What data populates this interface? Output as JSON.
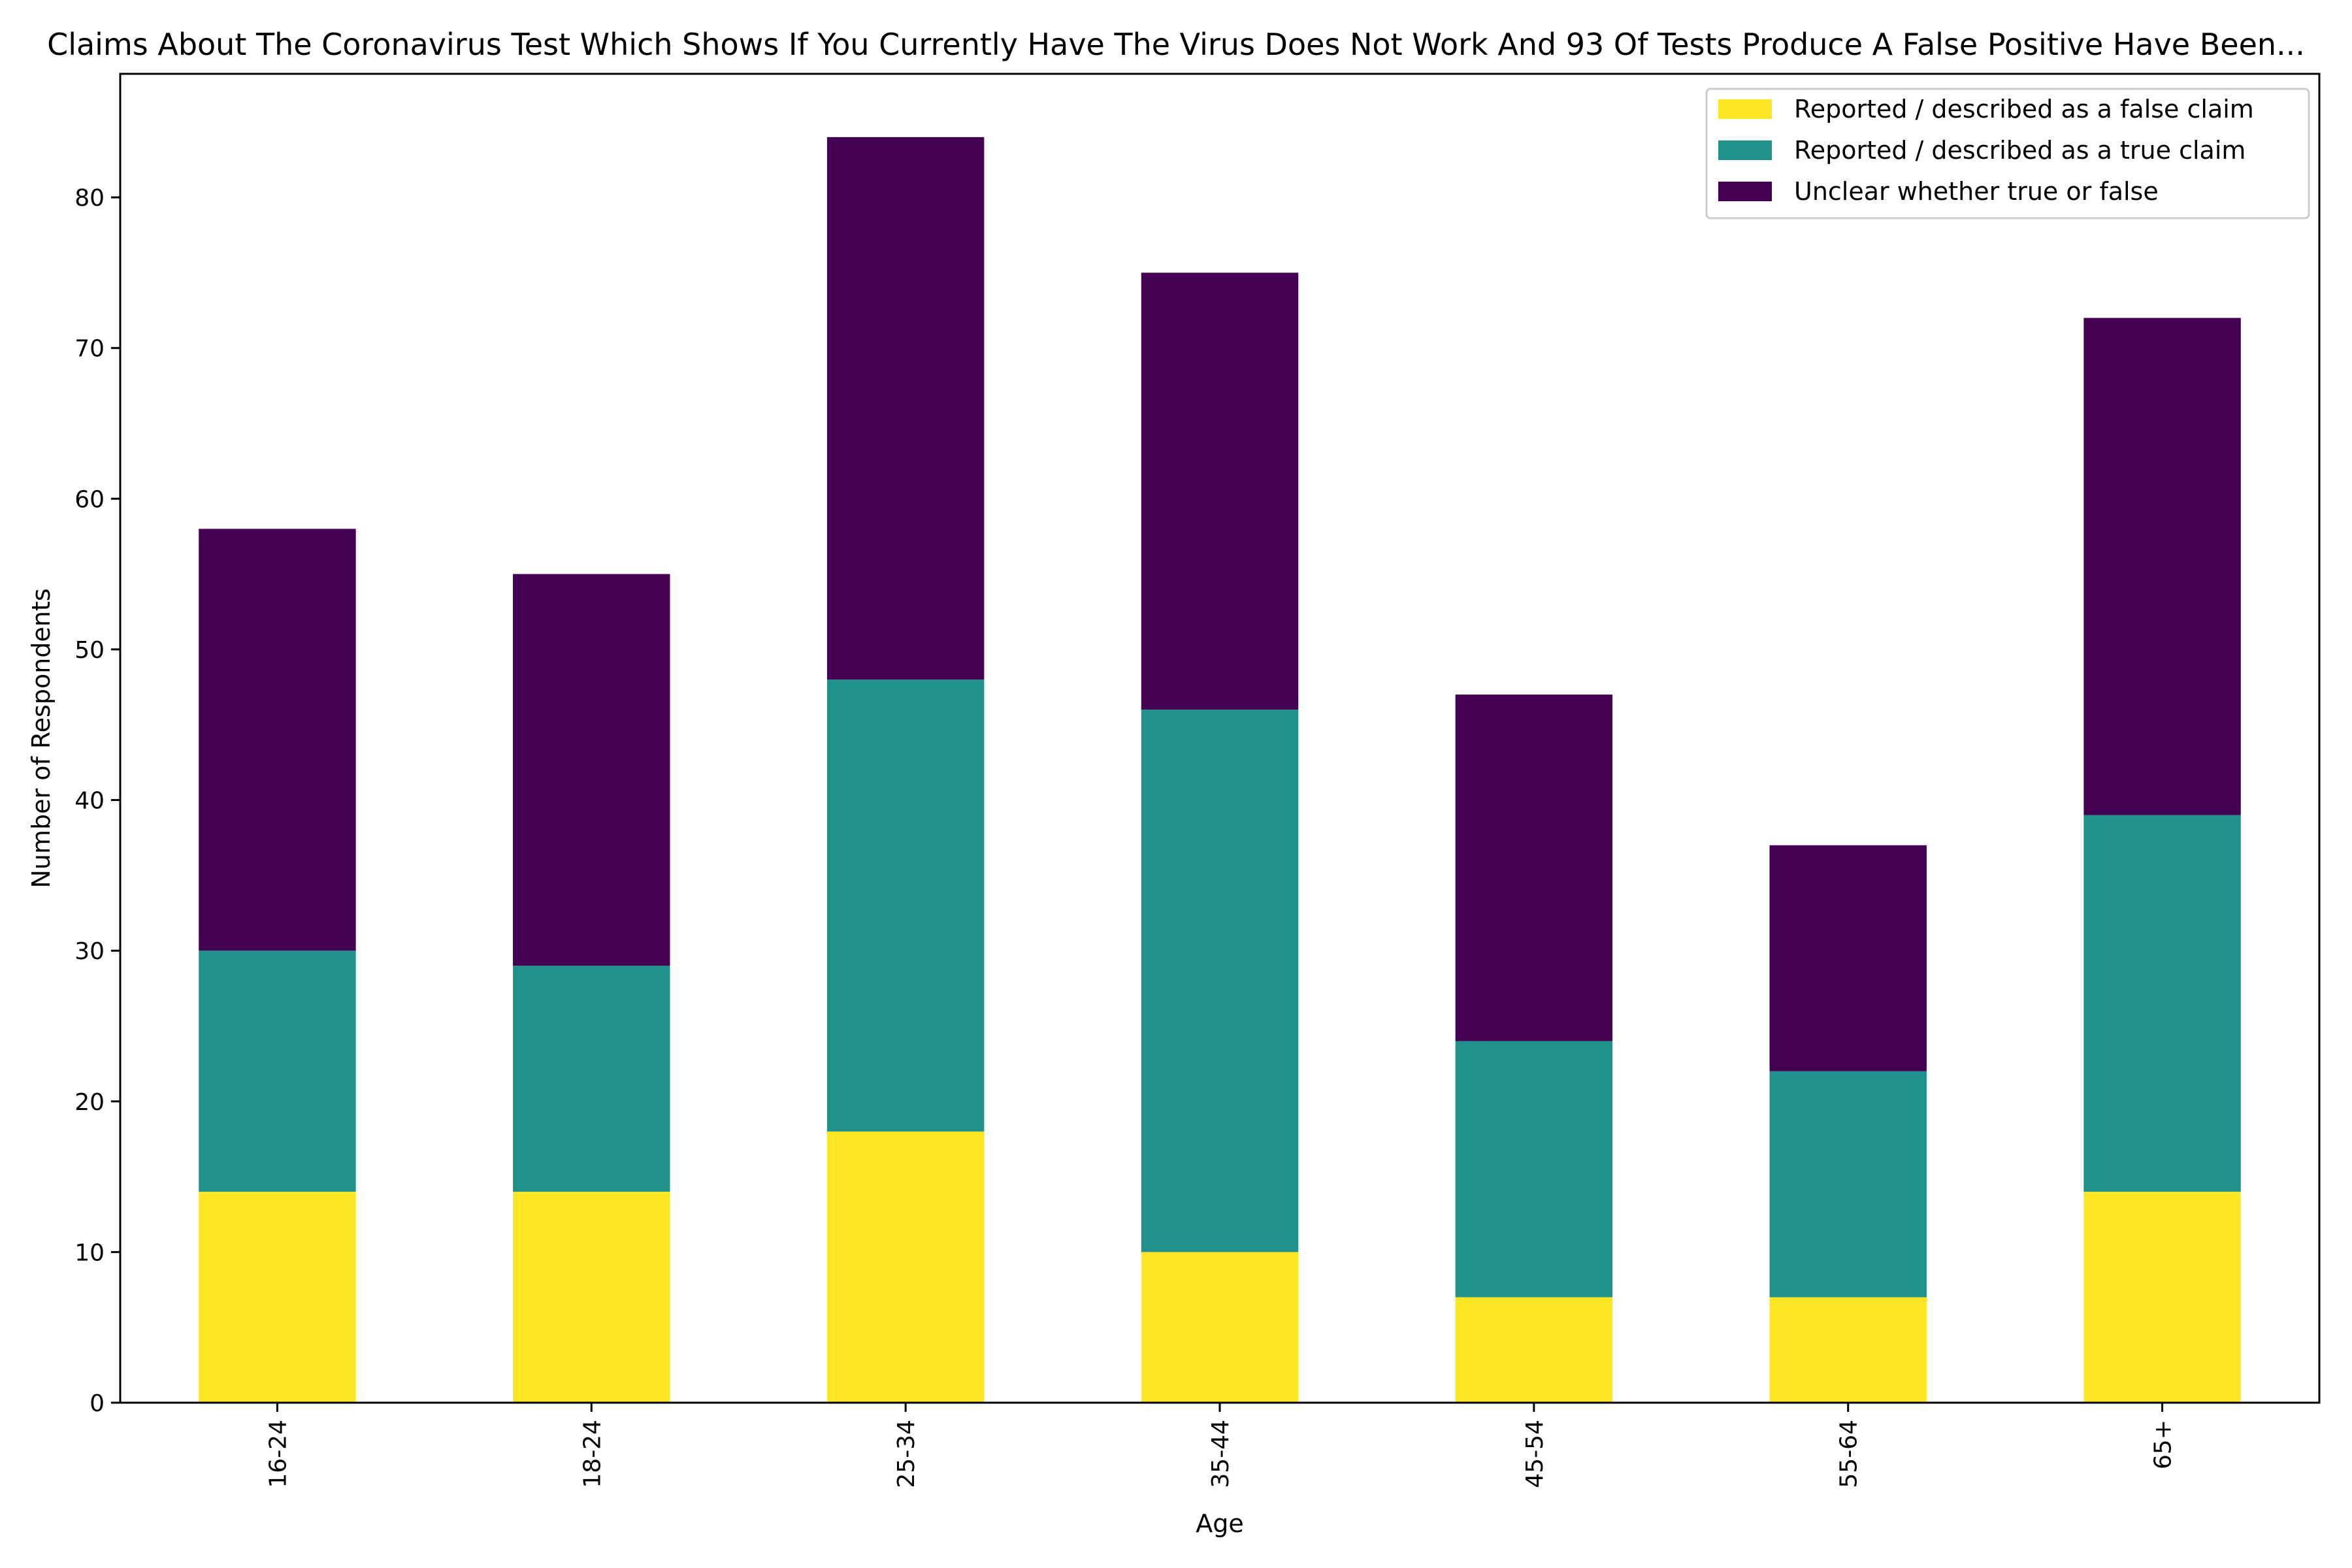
{
  "chart_data": {
    "type": "bar",
    "stacked": true,
    "title": "Claims About The Coronavirus Test Which Shows If You Currently Have The Virus Does Not Work And 93 Of Tests Produce A False Positive Have Been...",
    "xlabel": "Age",
    "ylabel": "Number of Respondents",
    "categories": [
      "16-24",
      "18-24",
      "25-34",
      "35-44",
      "45-54",
      "55-64",
      "65+"
    ],
    "series": [
      {
        "name": "Reported / described as a false claim",
        "color": "#fde725",
        "values": [
          14,
          14,
          18,
          10,
          7,
          7,
          14
        ]
      },
      {
        "name": "Reported / described as a true claim",
        "color": "#21918c",
        "values": [
          16,
          15,
          30,
          36,
          17,
          15,
          25
        ]
      },
      {
        "name": "Unclear whether true or false",
        "color": "#440154",
        "values": [
          28,
          26,
          36,
          29,
          23,
          15,
          33
        ]
      }
    ],
    "ylim": [
      0,
      88.2
    ],
    "yticks": [
      0,
      10,
      20,
      30,
      40,
      50,
      60,
      70,
      80
    ],
    "grid": false,
    "legend_position": "top-right",
    "x_tick_rotation": 90
  }
}
